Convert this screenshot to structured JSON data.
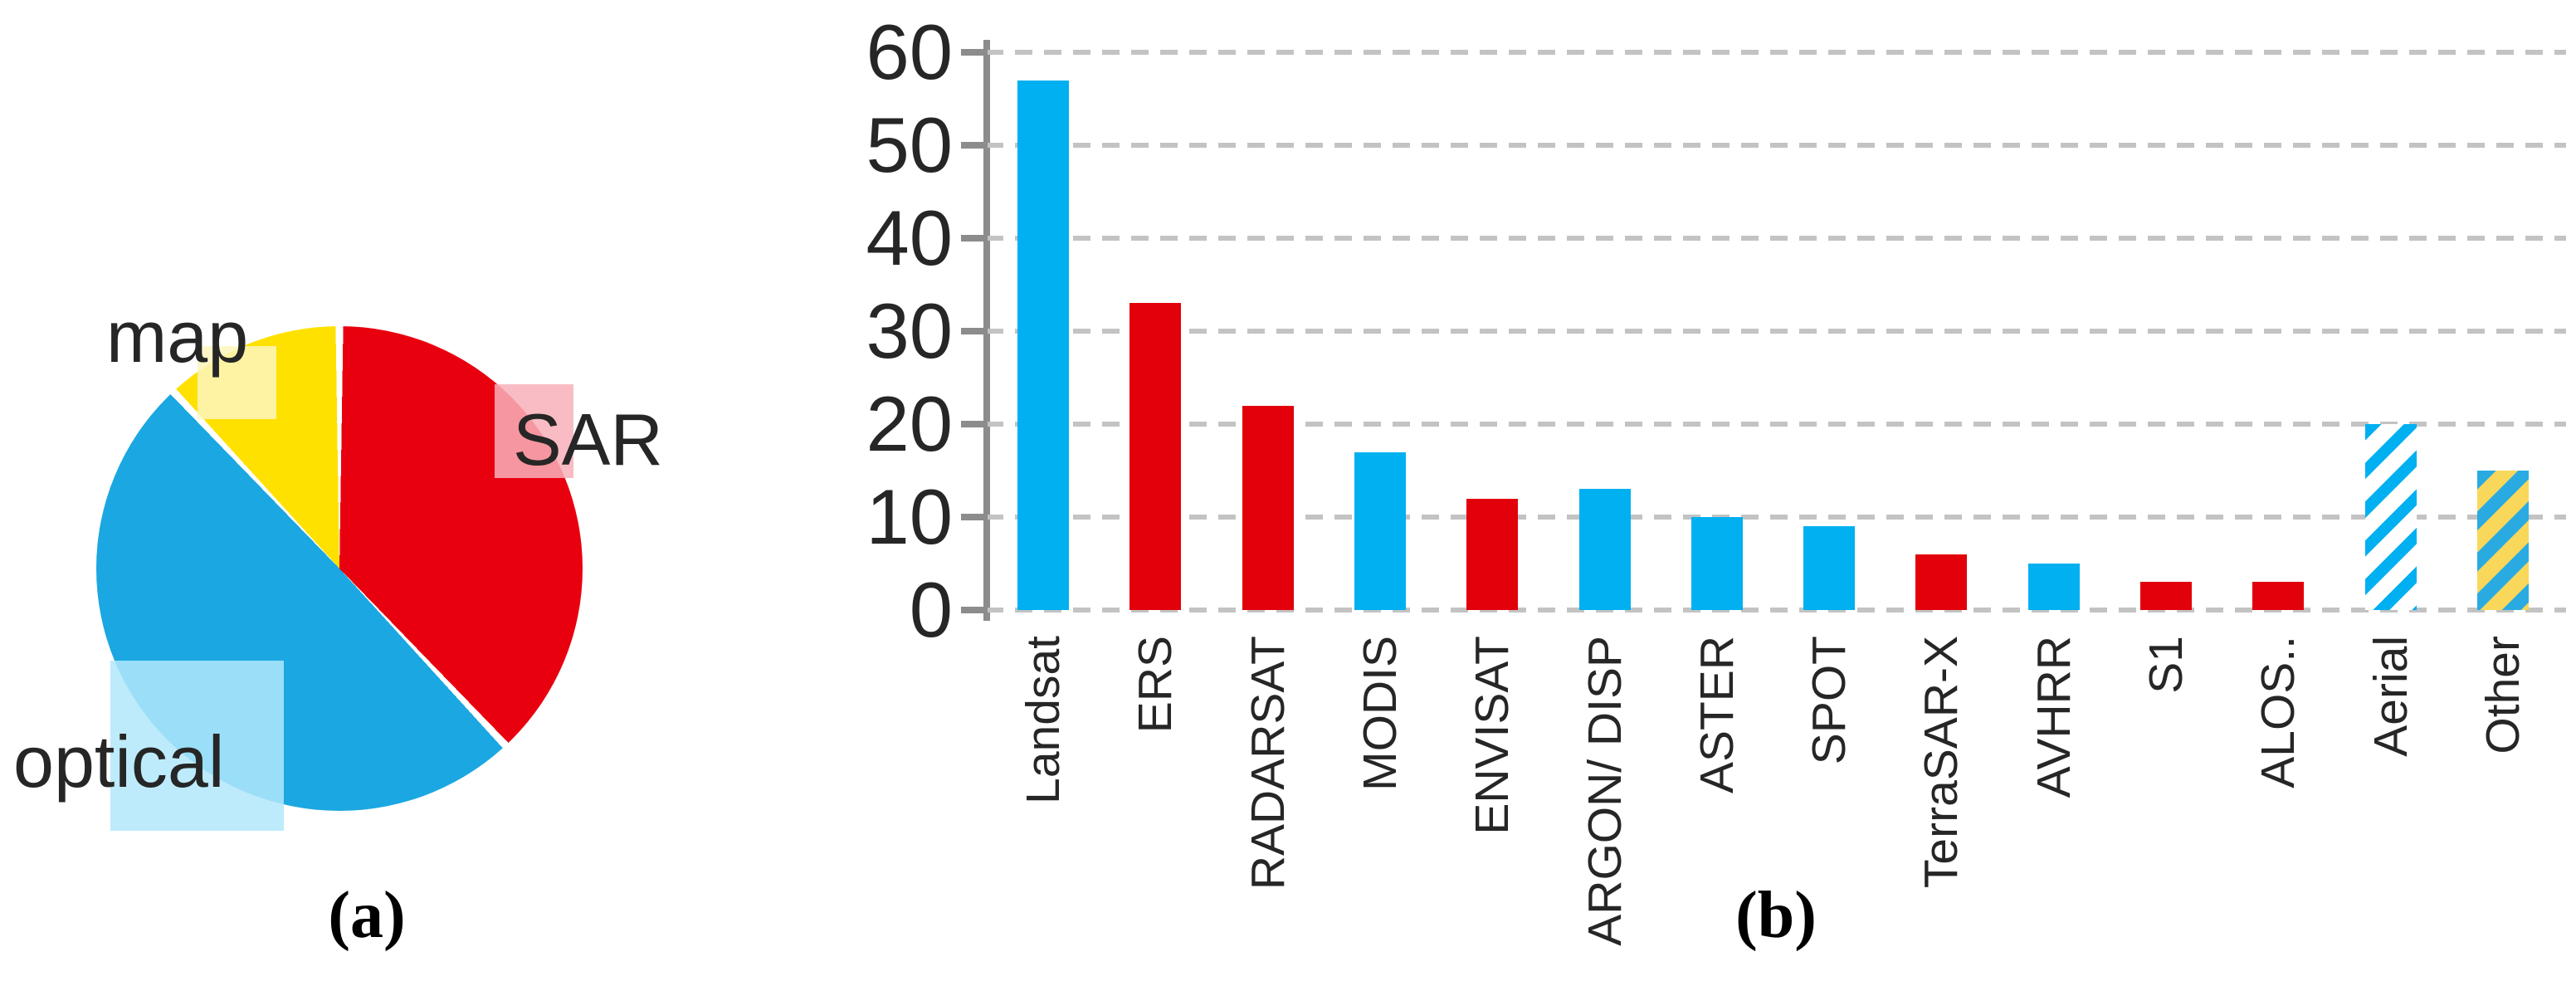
{
  "figure": {
    "background": "#ffffff",
    "text_color": "#262626"
  },
  "chart_data": [
    {
      "type": "pie",
      "caption": "(a)",
      "start": "12 o'clock, clockwise",
      "slices": [
        {
          "label": "SAR",
          "pct": 38,
          "color": "#E8000F",
          "box_color": "#F8B0BA"
        },
        {
          "label": "optical",
          "pct": 50,
          "color": "#1BA7E1",
          "box_color": "#B2E7FA"
        },
        {
          "label": "map",
          "pct": 12,
          "color": "#FFE100",
          "box_color": "#FDF6BE"
        }
      ],
      "slice_gap_color": "#ffffff"
    },
    {
      "type": "bar",
      "caption": "(b)",
      "categories": [
        "Landsat",
        "ERS",
        "RADARSAT",
        "MODIS",
        "ENVISAT",
        "ARGON/ DISP",
        "ASTER",
        "SPOT",
        "TerraSAR-X",
        "AVHRR",
        "S1",
        "ALOS..",
        "Aerial",
        "Other"
      ],
      "values": [
        57,
        33,
        22,
        17,
        12,
        13,
        10,
        9,
        6,
        5,
        3,
        3,
        20,
        15
      ],
      "styles": [
        "blue",
        "red",
        "red",
        "blue",
        "red",
        "blue",
        "blue",
        "blue",
        "red",
        "blue",
        "red",
        "red",
        "hatch-blue",
        "hatch-gold"
      ],
      "ylim": [
        0,
        60
      ],
      "yticks": [
        0,
        10,
        20,
        30,
        40,
        50,
        60
      ],
      "grid": "horizontal dashed",
      "xlabel": "",
      "ylabel": ""
    }
  ],
  "colors": {
    "bar_blue": "#00B0F0",
    "bar_red": "#E2000B",
    "hatch_stripe_blue": "#29ABE2",
    "hatch_gold": "#F8D75B",
    "gridline": "#C3C3C3",
    "axis": "#8C8C8C"
  }
}
